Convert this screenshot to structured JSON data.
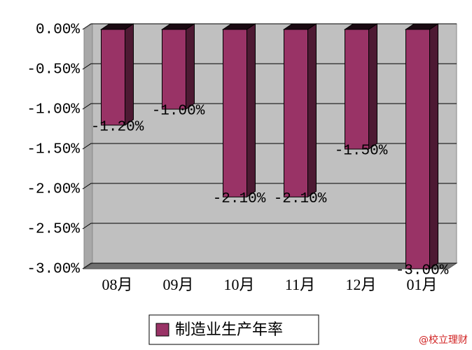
{
  "chart_data": {
    "type": "bar3d",
    "categories": [
      "08月",
      "09月",
      "10月",
      "11月",
      "12月",
      "01月"
    ],
    "series": [
      {
        "name": "制造业生产年率",
        "color": "#993366",
        "values": [
          -1.2,
          -1.0,
          -2.1,
          -2.1,
          -1.5,
          -3.0
        ],
        "value_labels": [
          "-1.20%",
          "-1.00%",
          "-2.10%",
          "-2.10%",
          "-1.50%",
          "-3.00%"
        ]
      }
    ],
    "ylim": [
      -3,
      0
    ],
    "yticks": [
      {
        "value": 0,
        "label": "0.00%"
      },
      {
        "value": -0.5,
        "label": "-0.50%"
      },
      {
        "value": -1,
        "label": "-1.00%"
      },
      {
        "value": -1.5,
        "label": "-1.50%"
      },
      {
        "value": -2,
        "label": "-2.00%"
      },
      {
        "value": -2.5,
        "label": "-2.50%"
      },
      {
        "value": -3,
        "label": "-3.00%"
      }
    ],
    "grid": true,
    "watermark": "@校立理财"
  }
}
